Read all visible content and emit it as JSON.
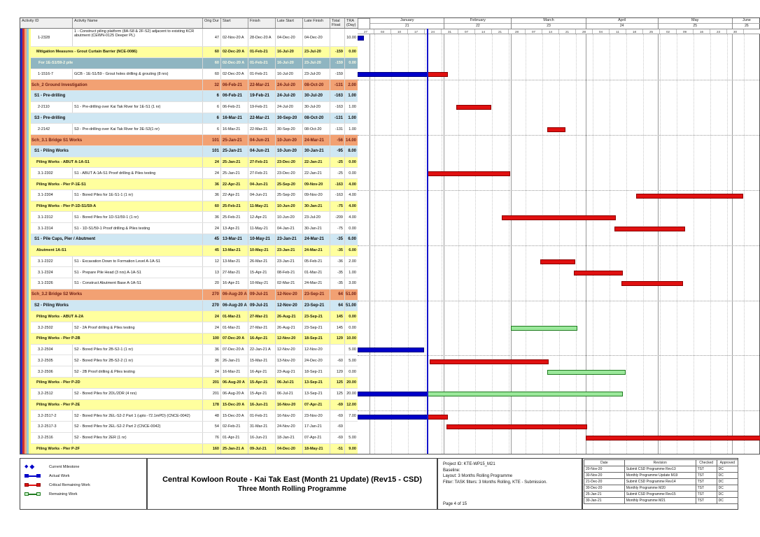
{
  "colors": {
    "actual": "#0000c8",
    "critical": "#e01010",
    "remaining": "#9be89b",
    "remaining_border": "#1f7a1f",
    "data_date_line": "#1414cc",
    "band_orange": "#f2a173",
    "band_blue": "#cfe7f3",
    "band_yellow": "#ffff9e",
    "band_teal": "#8fb5c1",
    "stripes": [
      "#2a2ab8",
      "#d03030",
      "#f2a478",
      "#8fcbdd",
      "#ffff8c"
    ]
  },
  "chart_data": {
    "type": "bar",
    "title": "Three Month Rolling Gantt (Primavera-style)",
    "timeline": {
      "start": "2020-12-27",
      "end": "2021-06-13",
      "data_date": "2021-01-25",
      "months": [
        {
          "label": "",
          "num": "",
          "from": "2020-12-27",
          "to": "2021-01-01"
        },
        {
          "label": "January",
          "num": "21",
          "from": "2021-01-01",
          "to": "2021-02-01"
        },
        {
          "label": "February",
          "num": "22",
          "from": "2021-02-01",
          "to": "2021-03-01"
        },
        {
          "label": "March",
          "num": "23",
          "from": "2021-03-01",
          "to": "2021-04-01"
        },
        {
          "label": "April",
          "num": "24",
          "from": "2021-04-01",
          "to": "2021-05-01"
        },
        {
          "label": "May",
          "num": "25",
          "from": "2021-05-01",
          "to": "2021-06-01"
        },
        {
          "label": "June",
          "num": "26",
          "from": "2021-06-01",
          "to": "2021-06-13"
        }
      ],
      "week_labels": [
        "27",
        "03",
        "10",
        "17",
        "24",
        "31",
        "07",
        "14",
        "21",
        "28",
        "07",
        "14",
        "21",
        "28",
        "04",
        "11",
        "18",
        "25",
        "02",
        "09",
        "16",
        "23",
        "30",
        ""
      ]
    },
    "columns": [
      {
        "key": "id",
        "label": "Activity ID"
      },
      {
        "key": "name",
        "label": "Activity Name"
      },
      {
        "key": "od",
        "label": "Orig Dur"
      },
      {
        "key": "start",
        "label": "Start"
      },
      {
        "key": "finish",
        "label": "Finish"
      },
      {
        "key": "ls",
        "label": "Late Start"
      },
      {
        "key": "lf",
        "label": "Late Finish"
      },
      {
        "key": "tf",
        "label": "Total Float"
      },
      {
        "key": "tra",
        "label": "TRA (Day)"
      }
    ],
    "rows": [
      {
        "id": "1-2328",
        "name": "1 - Construct piling platform (8A-S8 & 2F-S2) adjacent to existing KCR abutment (CEWN-0125 Deeper PL)",
        "band": "act",
        "tall": true,
        "od": "47",
        "start": "02-Nov-20 A",
        "finish": "28-Dec-20 A",
        "ls": "04-Dec-20",
        "lf": "04-Dec-20",
        "tf": "",
        "tra": "10.00",
        "bars": [
          {
            "t": "actual",
            "f": "2020-11-02",
            "to": "2020-12-28"
          }
        ]
      },
      {
        "id": "",
        "name": "Mitigation Measures - Grout Curtain Barrier (NCE-0086)",
        "band": "L3",
        "od": "60",
        "start": "02-Dec-20 A",
        "finish": "01-Feb-21",
        "ls": "16-Jul-20",
        "lf": "23-Jul-20",
        "tf": "-159",
        "tra": "0.00",
        "bars": []
      },
      {
        "id": "",
        "name": "For 1E-S1/59-2 pile",
        "band": "L3w",
        "od": "60",
        "start": "02-Dec-20 A",
        "finish": "01-Feb-21",
        "ls": "16-Jul-20",
        "lf": "23-Jul-20",
        "tf": "-159",
        "tra": "0.00",
        "bars": []
      },
      {
        "id": "1-1516-7",
        "name": "GCB - 1E-S1/59 - Grout holes drilling & grouting (8 nrs)",
        "band": "act",
        "od": "60",
        "start": "02-Dec-20 A",
        "finish": "01-Feb-21",
        "ls": "16-Jul-20",
        "lf": "23-Jul-20",
        "tf": "-159",
        "tra": "",
        "bars": [
          {
            "t": "actual",
            "f": "2020-12-02",
            "to": "2021-01-25"
          },
          {
            "t": "critical",
            "f": "2021-01-25",
            "to": "2021-02-01"
          }
        ]
      },
      {
        "id": "",
        "name": "Sch_2 Ground Investigation",
        "band": "L1",
        "od": "32",
        "start": "06-Feb-21",
        "finish": "22-Mar-21",
        "ls": "24-Jul-20",
        "lf": "08-Oct-20",
        "tf": "-131",
        "tra": "2.00",
        "bars": []
      },
      {
        "id": "",
        "name": "S1 - Pre-drilling",
        "band": "L2",
        "od": "6",
        "start": "06-Feb-21",
        "finish": "19-Feb-21",
        "ls": "24-Jul-20",
        "lf": "30-Jul-20",
        "tf": "-163",
        "tra": "1.00",
        "bars": []
      },
      {
        "id": "2-2110",
        "name": "S1 - Pre-drilling over Kai Tak River for 1E-S1 (1 nr)",
        "band": "act",
        "od": "6",
        "start": "06-Feb-21",
        "finish": "19-Feb-21",
        "ls": "24-Jul-20",
        "lf": "30-Jul-20",
        "tf": "-163",
        "tra": "1.00",
        "bars": [
          {
            "t": "critical",
            "f": "2021-02-06",
            "to": "2021-02-19"
          }
        ]
      },
      {
        "id": "",
        "name": "S3 - Pre-drilling",
        "band": "L2",
        "od": "6",
        "start": "16-Mar-21",
        "finish": "22-Mar-21",
        "ls": "30-Sep-20",
        "lf": "08-Oct-20",
        "tf": "-131",
        "tra": "1.00",
        "bars": []
      },
      {
        "id": "2-2142",
        "name": "S3 - Pre-drilling over Kai Tak River for 3E-S3(1 nr)",
        "band": "act",
        "od": "6",
        "start": "16-Mar-21",
        "finish": "22-Mar-21",
        "ls": "30-Sep-20",
        "lf": "08-Oct-20",
        "tf": "-131",
        "tra": "1.00",
        "bars": [
          {
            "t": "critical",
            "f": "2021-03-16",
            "to": "2021-03-22"
          }
        ]
      },
      {
        "id": "",
        "name": "Sch_3.1 Bridge S1 Works",
        "band": "L1",
        "od": "101",
        "start": "25-Jan-21",
        "finish": "04-Jun-21",
        "ls": "10-Jun-20",
        "lf": "24-Mar-21",
        "tf": "-56",
        "tra": "14.00",
        "bars": []
      },
      {
        "id": "",
        "name": "S1 - Piling Works",
        "band": "L2",
        "od": "101",
        "start": "25-Jan-21",
        "finish": "04-Jun-21",
        "ls": "10-Jun-20",
        "lf": "30-Jan-21",
        "tf": "-95",
        "tra": "8.00",
        "bars": []
      },
      {
        "id": "",
        "name": "Piling Works - ABUT A-1A-S1",
        "band": "L3",
        "od": "24",
        "start": "25-Jan-21",
        "finish": "27-Feb-21",
        "ls": "23-Dec-20",
        "lf": "22-Jan-21",
        "tf": "-25",
        "tra": "0.00",
        "bars": []
      },
      {
        "id": "3.1-2302",
        "name": "S1 - ABUT A-1A-S1 Proof drilling & Piles testing",
        "band": "act",
        "od": "24",
        "start": "25-Jan-21",
        "finish": "27-Feb-21",
        "ls": "23-Dec-20",
        "lf": "22-Jan-21",
        "tf": "-25",
        "tra": "0.00",
        "bars": [
          {
            "t": "critical",
            "f": "2021-01-25",
            "to": "2021-02-27"
          }
        ]
      },
      {
        "id": "",
        "name": "Piling Works - Pier P-1E-S1",
        "band": "L3",
        "od": "36",
        "start": "22-Apr-21",
        "finish": "04-Jun-21",
        "ls": "25-Sep-20",
        "lf": "09-Nov-20",
        "tf": "-163",
        "tra": "4.00",
        "bars": []
      },
      {
        "id": "3.1-2304",
        "name": "S1 - Bored Piles for 1E-S1-1 (1 nr)",
        "band": "act",
        "od": "36",
        "start": "22-Apr-21",
        "finish": "04-Jun-21",
        "ls": "25-Sep-20",
        "lf": "09-Nov-20",
        "tf": "-163",
        "tra": "4.00",
        "bars": [
          {
            "t": "critical",
            "f": "2021-04-22",
            "to": "2021-06-04"
          }
        ]
      },
      {
        "id": "",
        "name": "Piling Works - Pier P-1D-S1/S9-A",
        "band": "L3",
        "od": "60",
        "start": "25-Feb-21",
        "finish": "11-May-21",
        "ls": "10-Jun-20",
        "lf": "30-Jan-21",
        "tf": "-75",
        "tra": "4.00",
        "bars": []
      },
      {
        "id": "3.1-2312",
        "name": "S1 - Bored Piles for 1D-S1/59-1 (1 nr)",
        "band": "act",
        "od": "36",
        "start": "25-Feb-21",
        "finish": "12-Apr-21",
        "ls": "10-Jun-20",
        "lf": "23-Jul-20",
        "tf": "-209",
        "tra": "4.00",
        "bars": [
          {
            "t": "critical",
            "f": "2021-02-25",
            "to": "2021-04-12"
          }
        ]
      },
      {
        "id": "3.1-2314",
        "name": "S1 - 1D-S1/59-1 Proof drilling & Piles testing",
        "band": "act",
        "od": "24",
        "start": "13-Apr-21",
        "finish": "11-May-21",
        "ls": "04-Jan-21",
        "lf": "30-Jan-21",
        "tf": "-75",
        "tra": "0.00",
        "bars": [
          {
            "t": "critical",
            "f": "2021-04-13",
            "to": "2021-05-11"
          }
        ]
      },
      {
        "id": "",
        "name": "S1 - Pile Caps, Pier / Abutment",
        "band": "L2",
        "od": "45",
        "start": "13-Mar-21",
        "finish": "10-May-21",
        "ls": "23-Jan-21",
        "lf": "24-Mar-21",
        "tf": "-35",
        "tra": "6.00",
        "bars": []
      },
      {
        "id": "",
        "name": "Abutment 1A-S1",
        "band": "L3",
        "od": "45",
        "start": "13-Mar-21",
        "finish": "10-May-21",
        "ls": "23-Jan-21",
        "lf": "24-Mar-21",
        "tf": "-35",
        "tra": "6.00",
        "bars": []
      },
      {
        "id": "3.1-2322",
        "name": "S1 - Excavation Down to Formation Level A-1A-S1",
        "band": "act",
        "od": "12",
        "start": "13-Mar-21",
        "finish": "26-Mar-21",
        "ls": "23-Jan-21",
        "lf": "05-Feb-21",
        "tf": "-36",
        "tra": "2.00",
        "bars": [
          {
            "t": "critical",
            "f": "2021-03-13",
            "to": "2021-03-26"
          }
        ]
      },
      {
        "id": "3.1-2324",
        "name": "S1 - Prepare Pile Head (3 nrs) A-1A-S1",
        "band": "act",
        "od": "13",
        "start": "27-Mar-21",
        "finish": "15-Apr-21",
        "ls": "08-Feb-21",
        "lf": "01-Mar-21",
        "tf": "-35",
        "tra": "1.00",
        "bars": [
          {
            "t": "critical",
            "f": "2021-03-27",
            "to": "2021-04-15"
          }
        ]
      },
      {
        "id": "3.1-2326",
        "name": "S1 - Construct Abutment Base A-1A-S1",
        "band": "act",
        "od": "20",
        "start": "16-Apr-21",
        "finish": "10-May-21",
        "ls": "02-Mar-21",
        "lf": "24-Mar-21",
        "tf": "-35",
        "tra": "3.00",
        "bars": [
          {
            "t": "critical",
            "f": "2021-04-16",
            "to": "2021-05-10"
          }
        ]
      },
      {
        "id": "",
        "name": "Sch_3.2 Bridge S2 Works",
        "band": "L1",
        "od": "270",
        "start": "06-Aug-20 A",
        "finish": "09-Jul-21",
        "ls": "12-Nov-20",
        "lf": "23-Sep-21",
        "tf": "64",
        "tra": "51.00",
        "bars": []
      },
      {
        "id": "",
        "name": "S2 - Piling Works",
        "band": "L2",
        "od": "270",
        "start": "06-Aug-20 A",
        "finish": "09-Jul-21",
        "ls": "12-Nov-20",
        "lf": "23-Sep-21",
        "tf": "64",
        "tra": "51.00",
        "bars": []
      },
      {
        "id": "",
        "name": "Piling Works - ABUT A-2A",
        "band": "L3",
        "od": "24",
        "start": "01-Mar-21",
        "finish": "27-Mar-21",
        "ls": "26-Aug-21",
        "lf": "23-Sep-21",
        "tf": "145",
        "tra": "0.00",
        "bars": []
      },
      {
        "id": "3.2-2502",
        "name": "S2 - 2A Proof drilling & Piles testing",
        "band": "act",
        "od": "24",
        "start": "01-Mar-21",
        "finish": "27-Mar-21",
        "ls": "26-Aug-21",
        "lf": "23-Sep-21",
        "tf": "145",
        "tra": "0.00",
        "bars": [
          {
            "t": "remaining",
            "f": "2021-03-01",
            "to": "2021-03-27"
          }
        ]
      },
      {
        "id": "",
        "name": "Piling Works - Pier P-2B",
        "band": "L3",
        "od": "100",
        "start": "07-Dec-20 A",
        "finish": "16-Apr-21",
        "ls": "12-Nov-20",
        "lf": "18-Sep-21",
        "tf": "129",
        "tra": "10.00",
        "bars": []
      },
      {
        "id": "3.2-2504",
        "name": "S2 - Bored Piles for 2B-S2-1 (1 nr)",
        "band": "act",
        "od": "36",
        "start": "07-Dec-20 A",
        "finish": "22-Jan-21 A",
        "ls": "12-Nov-20",
        "lf": "12-Nov-20",
        "tf": "",
        "tra": "5.00",
        "bars": [
          {
            "t": "actual",
            "f": "2020-12-07",
            "to": "2021-01-22"
          }
        ]
      },
      {
        "id": "3.2-2505",
        "name": "S2 - Bored Piles for 2B-S2-2 (1 nr)",
        "band": "act",
        "od": "36",
        "start": "26-Jan-21",
        "finish": "15-Mar-21",
        "ls": "13-Nov-20",
        "lf": "24-Dec-20",
        "tf": "-60",
        "tra": "5.00",
        "bars": [
          {
            "t": "critical",
            "f": "2021-01-26",
            "to": "2021-03-15"
          }
        ]
      },
      {
        "id": "3.2-2506",
        "name": "S2 - 2B Proof drilling & Piles testing",
        "band": "act",
        "od": "24",
        "start": "16-Mar-21",
        "finish": "16-Apr-21",
        "ls": "23-Aug-21",
        "lf": "18-Sep-21",
        "tf": "129",
        "tra": "0.00",
        "bars": [
          {
            "t": "remaining",
            "f": "2021-03-16",
            "to": "2021-04-16"
          }
        ]
      },
      {
        "id": "",
        "name": "Piling Works - Pier P-2D",
        "band": "L3",
        "od": "201",
        "start": "06-Aug-20 A",
        "finish": "15-Apr-21",
        "ls": "06-Jul-21",
        "lf": "13-Sep-21",
        "tf": "125",
        "tra": "20.00",
        "bars": []
      },
      {
        "id": "3.2-2512",
        "name": "S2 - Bored Piles for 2DL/2DR (4 nrs)",
        "band": "act",
        "od": "201",
        "start": "06-Aug-20 A",
        "finish": "15-Apr-21",
        "ls": "06-Jul-21",
        "lf": "13-Sep-21",
        "tf": "125",
        "tra": "20.00",
        "bars": [
          {
            "t": "actual",
            "f": "2020-08-06",
            "to": "2021-01-25"
          },
          {
            "t": "remaining",
            "f": "2021-01-25",
            "to": "2021-04-15"
          }
        ]
      },
      {
        "id": "",
        "name": "Piling Works - Pier P-2E",
        "band": "L3",
        "od": "178",
        "start": "15-Dec-20 A",
        "finish": "16-Jun-21",
        "ls": "16-Nov-20",
        "lf": "07-Apr-21",
        "tf": "-69",
        "tra": "12.00",
        "bars": []
      },
      {
        "id": "3.2-2517-2",
        "name": "S2 - Bored Piles for 2EL-S2-2 Part 1 (upto -72.1mPD) (CNCE-0042)",
        "band": "act",
        "od": "48",
        "start": "15-Dec-20 A",
        "finish": "01-Feb-21",
        "ls": "16-Nov-20",
        "lf": "23-Nov-20",
        "tf": "-69",
        "tra": "7.00",
        "bars": [
          {
            "t": "actual",
            "f": "2020-12-15",
            "to": "2021-01-25"
          },
          {
            "t": "critical",
            "f": "2021-01-25",
            "to": "2021-02-01"
          }
        ]
      },
      {
        "id": "3.2-2517-3",
        "name": "S2 - Bored Piles for 2EL-S2-2 Part 2 (CNCE-0042)",
        "band": "act",
        "od": "54",
        "start": "02-Feb-21",
        "finish": "31-Mar-21",
        "ls": "24-Nov-20",
        "lf": "17-Jan-21",
        "tf": "-69",
        "tra": "",
        "bars": [
          {
            "t": "critical",
            "f": "2021-02-02",
            "to": "2021-03-31"
          }
        ]
      },
      {
        "id": "3.2-2516",
        "name": "S2 - Bored Piles for 2ER (1 nr)",
        "band": "act",
        "od": "76",
        "start": "01-Apr-21",
        "finish": "16-Jun-21",
        "ls": "18-Jan-21",
        "lf": "07-Apr-21",
        "tf": "-69",
        "tra": "5.00",
        "bars": [
          {
            "t": "critical",
            "f": "2021-04-01",
            "to": "2021-06-16"
          }
        ]
      },
      {
        "id": "",
        "name": "Piling Works - Pier P-2F",
        "band": "L3",
        "od": "160",
        "start": "25-Jan-21 A",
        "finish": "09-Jul-21",
        "ls": "04-Dec-20",
        "lf": "18-May-21",
        "tf": "-51",
        "tra": "9.00",
        "bars": []
      }
    ]
  },
  "footer": {
    "legend": {
      "items": [
        {
          "shape": "milestone",
          "label": "Current Milestone"
        },
        {
          "shape": "actual",
          "label": "Actual Work"
        },
        {
          "shape": "critical",
          "label": "Critical Remaining Work"
        },
        {
          "shape": "remaining",
          "label": "Remaining Work"
        }
      ]
    },
    "title": {
      "line1": "Central Kowloon Route - Kai Tak East (Month 21 Update) (Rev15 - CSD)",
      "line2": "Three Month Rolling Programme"
    },
    "info": {
      "project_id": "Project ID: KTE-WP15_M21",
      "baseline": "Baseline:",
      "layout": "Layout: 3 Months Rolling Programme",
      "filter": "Filter: TASK filters: 3 Months Rolling, KTE - Submission.",
      "page": "Page 4 of 15"
    },
    "revision": {
      "headers": [
        "Date",
        "Revision",
        "Checked",
        "Approved"
      ],
      "rows": [
        [
          "20-Nov-20",
          "Submit CSD Programme Rev13",
          "TST",
          "DC"
        ],
        [
          "30-Nov-20",
          "Monthly Programme Update M19",
          "TST",
          "DC"
        ],
        [
          "21-Dec-20",
          "Submit CSD Programme Rev14",
          "TST",
          "DC"
        ],
        [
          "30-Dec-20",
          "Monthly Programme M20",
          "TST",
          "DC"
        ],
        [
          "25-Jan-21",
          "Submit CSD Programme Rev15",
          "TST",
          "DC"
        ],
        [
          "30-Jan-21",
          "Monthly Programme M21",
          "TST",
          "DC"
        ]
      ]
    }
  }
}
